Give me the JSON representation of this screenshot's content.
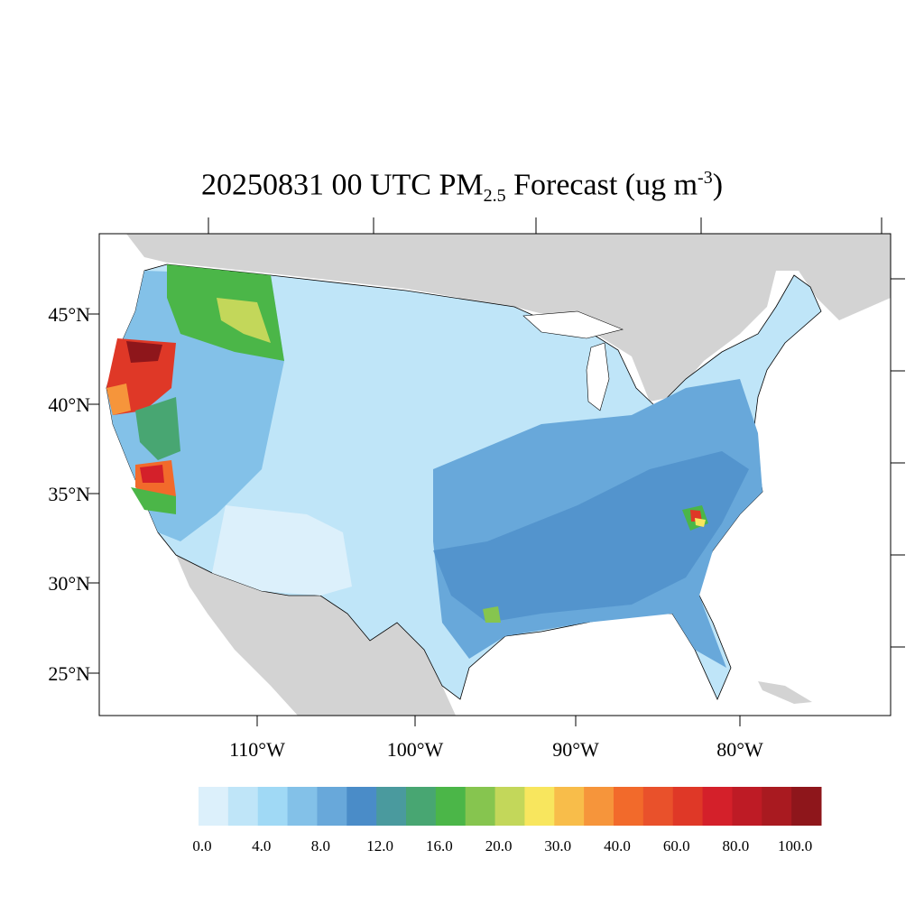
{
  "title": {
    "prefix": "20250831 00 UTC PM",
    "sub": "2.5",
    "middle": " Forecast (ug m",
    "sup": "-3",
    "suffix": ")"
  },
  "map": {
    "region": "Contiguous United States, county-level",
    "lat_labels": [
      "45°N",
      "40°N",
      "35°N",
      "30°N",
      "25°N"
    ],
    "lon_labels": [
      "110°W",
      "100°W",
      "90°W",
      "80°W"
    ],
    "land_color": "#d3d3d3",
    "water_color": "#ffffff",
    "hotspots": [
      "Northern California / Oregon wildfire smoke (60-100+)",
      "Idaho / Montana (16-30)",
      "Southern Sierra Nevada (40-80)",
      "Georgia / South Carolina (20-60)",
      "South Texas (16-20)"
    ]
  },
  "colorbar": {
    "labels": [
      "0.0",
      "4.0",
      "8.0",
      "12.0",
      "16.0",
      "20.0",
      "30.0",
      "40.0",
      "60.0",
      "80.0",
      "100.0"
    ],
    "colors": [
      "#dcf0fb",
      "#bfe5f8",
      "#a0d9f5",
      "#83c1e8",
      "#68a8da",
      "#4a8cc8",
      "#4a9a9e",
      "#48a672",
      "#4bb648",
      "#86c54f",
      "#c3d75a",
      "#f8e65e",
      "#f8bd4a",
      "#f6953b",
      "#f26a2b",
      "#e9512b",
      "#df3827",
      "#d4202a",
      "#be1b25",
      "#a91a20",
      "#8e161b"
    ]
  }
}
